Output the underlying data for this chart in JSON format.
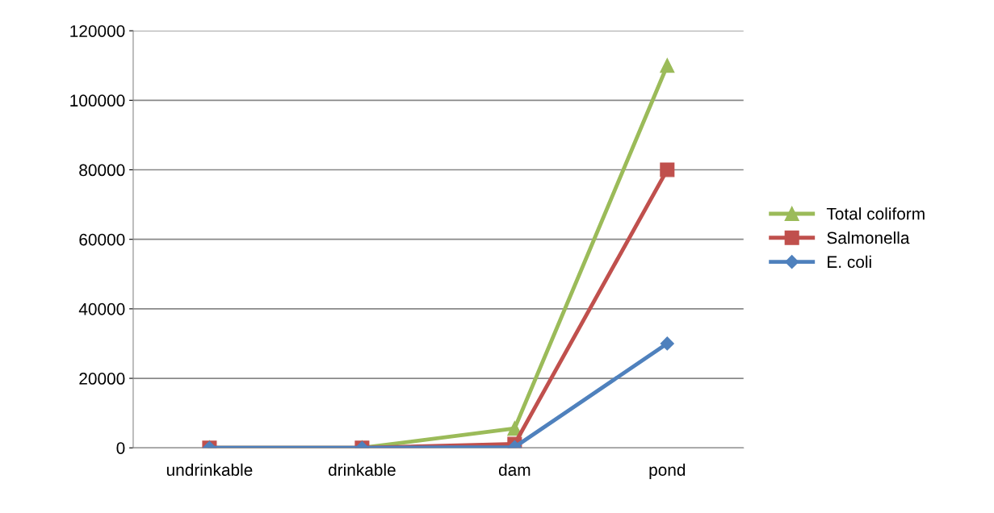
{
  "chart_data": {
    "type": "line",
    "categories": [
      "undrinkable",
      "drinkable",
      "dam",
      "pond"
    ],
    "series": [
      {
        "name": "Total coliform",
        "color": "#9bbb59",
        "marker": "triangle",
        "values": [
          0,
          0,
          5600,
          110000
        ]
      },
      {
        "name": "Salmonella",
        "color": "#c0504d",
        "marker": "square",
        "values": [
          0,
          0,
          1100,
          80000
        ]
      },
      {
        "name": "E. coli",
        "color": "#4f81bd",
        "marker": "diamond",
        "values": [
          0,
          0,
          200,
          30000
        ]
      }
    ],
    "ylim": [
      0,
      120000
    ],
    "yticks": [
      0,
      20000,
      40000,
      60000,
      80000,
      100000,
      120000
    ],
    "grid": "y",
    "legend": "right"
  }
}
